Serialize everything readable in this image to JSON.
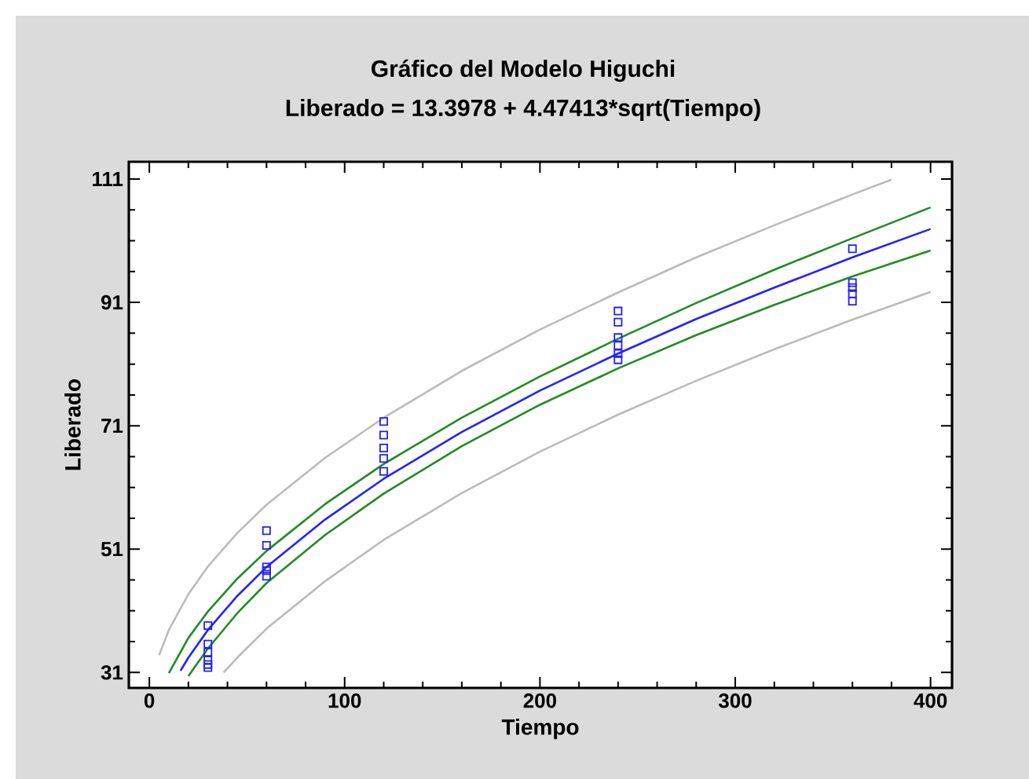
{
  "chart_data": {
    "type": "scatter",
    "title": "Gráfico del Modelo Higuchi",
    "subtitle": "Liberado = 13.3978 + 4.47413*sqrt(Tiempo)",
    "xlabel": "Tiempo",
    "ylabel": "Liberado",
    "xlim": [
      -10.5,
      411
    ],
    "ylim": [
      28.5,
      113.8
    ],
    "xticks": [
      0,
      100,
      200,
      300,
      400
    ],
    "yticks": [
      31,
      51,
      71,
      91,
      111
    ],
    "grid": false,
    "series": [
      {
        "marker": "square",
        "color": "#2222ee",
        "x": [
          30,
          30,
          30,
          30,
          30,
          30,
          60,
          60,
          60,
          60,
          60,
          120,
          120,
          120,
          120,
          120,
          240,
          240,
          240,
          240,
          240,
          240,
          360,
          360,
          360,
          360,
          360
        ],
        "values": [
          38.6,
          35.6,
          34.3,
          33.0,
          32.3,
          31.8,
          54.0,
          51.6,
          48.1,
          47.5,
          46.6,
          71.7,
          69.5,
          67.4,
          65.7,
          63.6,
          89.6,
          87.8,
          85.3,
          84.0,
          82.7,
          81.7,
          99.7,
          94.2,
          93.4,
          92.4,
          91.2
        ]
      },
      {
        "type": "line",
        "color": "#bbbbbb",
        "x": [
          5,
          10,
          20,
          30,
          45,
          60,
          90,
          120,
          160,
          200,
          240,
          280,
          320,
          360,
          380
        ],
        "values": [
          33.8,
          37.9,
          43.7,
          48.2,
          53.6,
          58.2,
          65.8,
          72.3,
          79.9,
          86.6,
          92.6,
          98.3,
          103.5,
          108.5,
          110.9
        ]
      },
      {
        "type": "line",
        "color": "#228b22",
        "x": [
          10,
          20,
          30,
          45,
          60,
          90,
          120,
          160,
          200,
          240,
          280,
          320,
          360,
          400
        ],
        "values": [
          30.9,
          36.6,
          40.9,
          46.2,
          50.7,
          58.3,
          64.8,
          72.3,
          79.0,
          85.1,
          90.9,
          96.3,
          101.4,
          106.4
        ]
      },
      {
        "type": "line",
        "color": "#2222ff",
        "x": [
          16,
          20,
          30,
          45,
          60,
          90,
          120,
          160,
          200,
          240,
          280,
          320,
          360,
          400
        ],
        "values": [
          31.3,
          33.4,
          37.9,
          43.4,
          48.1,
          55.8,
          62.4,
          70.0,
          76.7,
          82.7,
          88.3,
          93.4,
          98.3,
          102.9
        ]
      },
      {
        "type": "line",
        "color": "#228b22",
        "x": [
          20,
          30,
          45,
          60,
          90,
          120,
          160,
          200,
          240,
          280,
          320,
          360,
          400
        ],
        "values": [
          30.4,
          34.9,
          40.6,
          45.5,
          53.3,
          60.0,
          67.7,
          74.4,
          80.3,
          85.7,
          90.6,
          95.2,
          99.4
        ]
      },
      {
        "type": "line",
        "color": "#bbbbbb",
        "x": [
          38,
          45,
          60,
          90,
          120,
          160,
          200,
          240,
          280,
          320,
          360,
          400
        ],
        "values": [
          31.0,
          33.4,
          38.1,
          45.8,
          52.5,
          60.1,
          66.8,
          72.8,
          78.3,
          83.4,
          88.2,
          92.7
        ]
      }
    ]
  }
}
